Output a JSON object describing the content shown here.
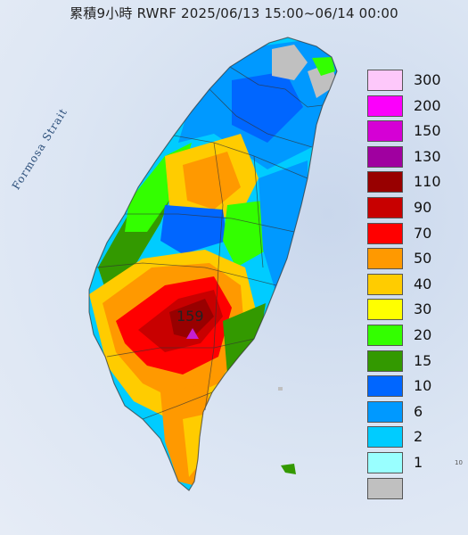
{
  "title": "累積9小時 RWRF 2025/06/13 15:00~06/14 00:00",
  "sea_label": "Formosa Strait",
  "station": {
    "value": "159"
  },
  "legend": {
    "levels": [
      {
        "label": "300",
        "color": "#fdc8fa"
      },
      {
        "label": "200",
        "color": "#fb00fb"
      },
      {
        "label": "150",
        "color": "#d500d5"
      },
      {
        "label": "130",
        "color": "#a000a0"
      },
      {
        "label": "110",
        "color": "#980000"
      },
      {
        "label": "90",
        "color": "#c80000"
      },
      {
        "label": "70",
        "color": "#ff0000"
      },
      {
        "label": "50",
        "color": "#ff9900"
      },
      {
        "label": "40",
        "color": "#ffcc00"
      },
      {
        "label": "30",
        "color": "#ffff00"
      },
      {
        "label": "20",
        "color": "#33ff00"
      },
      {
        "label": "15",
        "color": "#339900"
      },
      {
        "label": "10",
        "color": "#0066ff"
      },
      {
        "label": "6",
        "color": "#0099ff"
      },
      {
        "label": "2",
        "color": "#00ccff"
      },
      {
        "label": "1",
        "color": "#99ffff"
      },
      {
        "label": "",
        "color": "#c0c0c0"
      }
    ]
  },
  "corner_tick": "10"
}
